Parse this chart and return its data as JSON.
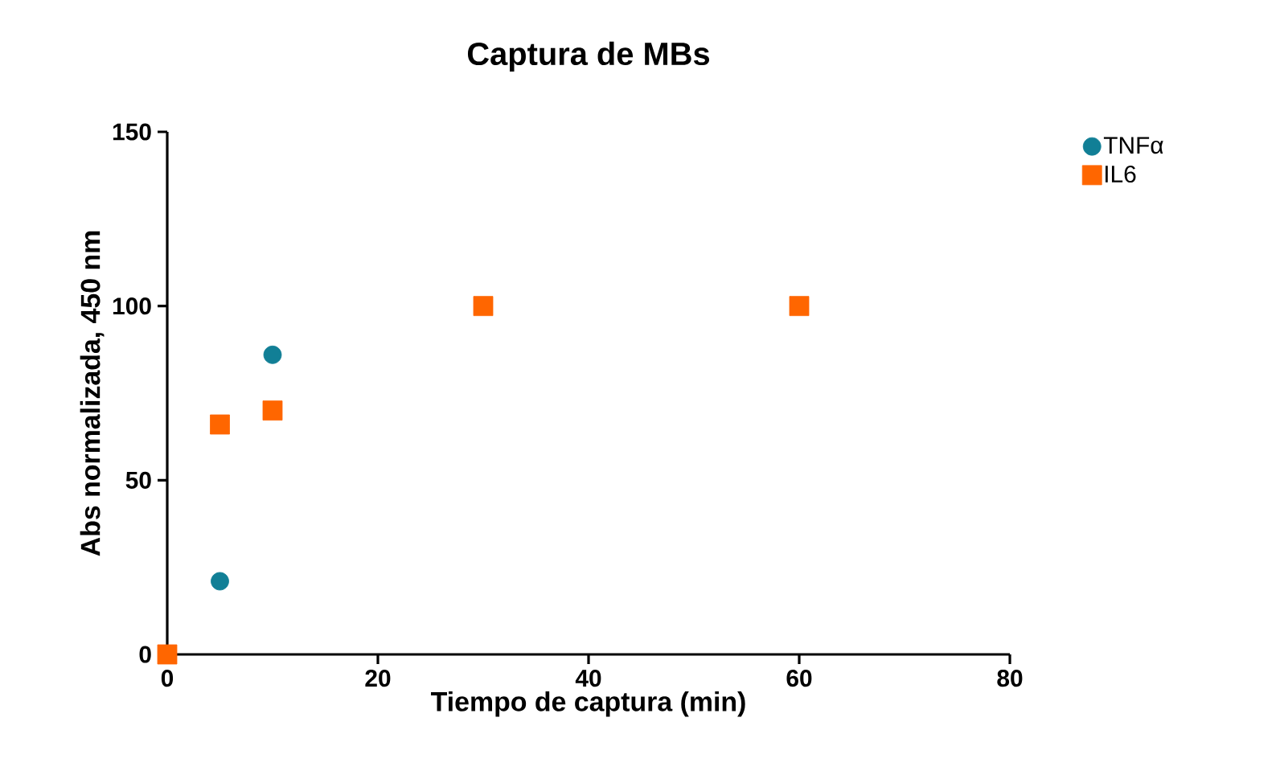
{
  "chart_data": {
    "type": "scatter",
    "title": "Captura de MBs",
    "xlabel": "Tiempo de captura (min)",
    "ylabel": "Abs normalizada, 450 nm",
    "x": [
      0,
      5,
      10,
      30,
      60
    ],
    "series": [
      {
        "name": "TNFα",
        "color": "#117f96",
        "marker": "circle",
        "values": [
          null,
          21,
          86,
          null,
          null
        ]
      },
      {
        "name": "IL6",
        "color": "#ff6600",
        "marker": "square",
        "values": [
          0,
          66,
          70,
          100,
          100
        ]
      }
    ],
    "xlim": [
      0,
      80
    ],
    "xticks": [
      0,
      20,
      40,
      60,
      80
    ],
    "ylim": [
      0,
      150
    ],
    "yticks": [
      0,
      50,
      100,
      150
    ],
    "grid": false,
    "legend": "top right"
  }
}
